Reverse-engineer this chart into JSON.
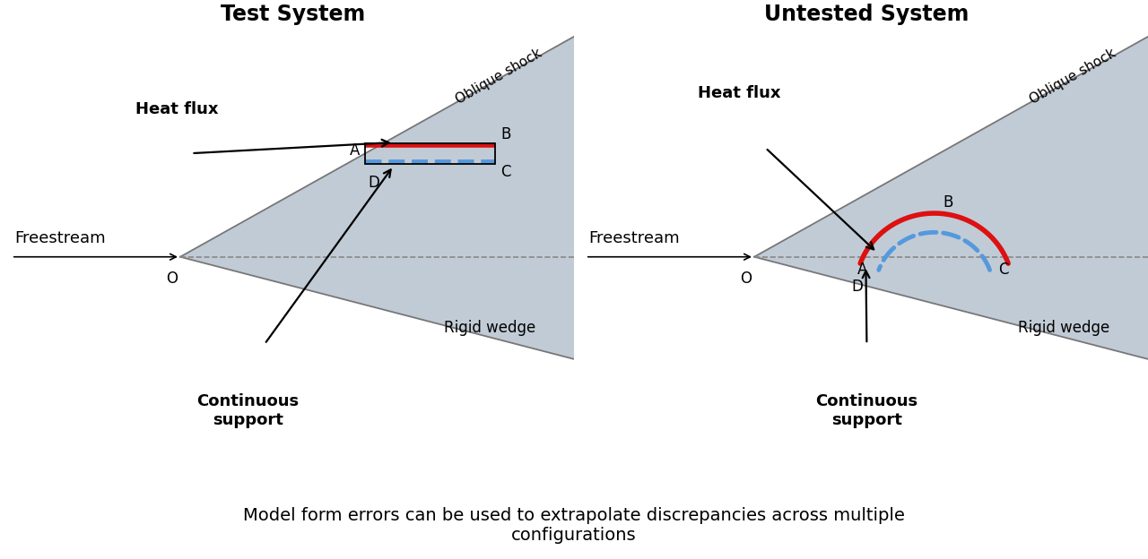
{
  "fig_width": 12.8,
  "fig_height": 6.24,
  "bg_color": "#ffffff",
  "title_left": "Test System",
  "title_right": "Untested System",
  "title_fontsize": 17,
  "title_fontweight": "bold",
  "caption": "Model form errors can be used to extrapolate discrepancies across multiple\nconfigurations",
  "caption_fontsize": 14,
  "wedge_color": "#a0afc0",
  "wedge_alpha": 0.65,
  "freestream_label": "Freestream",
  "freestream_fontsize": 13,
  "oblique_shock_label": "Oblique shock",
  "oblique_shock_fontsize": 11,
  "rigid_wedge_label": "Rigid wedge",
  "rigid_wedge_fontsize": 12,
  "heat_flux_label": "Heat flux",
  "heat_flux_fontsize": 13,
  "continuous_support_label": "Continuous\nsupport",
  "continuous_support_fontsize": 13,
  "point_label_fontsize": 12,
  "red_color": "#dd1111",
  "blue_dashed_color": "#5599dd",
  "red_lw": 4.0,
  "blue_lw": 3.5,
  "shock_line_color": "#777777",
  "shock_line_lw": 1.3,
  "dashed_line_color": "#888888",
  "dashed_line_lw": 1.2,
  "arrow_lw": 1.6
}
